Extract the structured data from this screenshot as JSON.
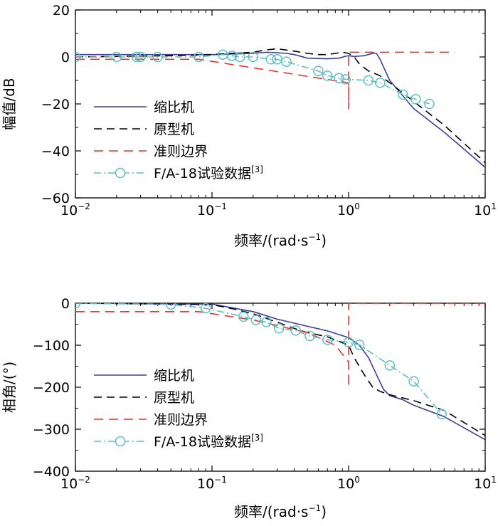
{
  "colors": {
    "scaled": "#3a3f9a",
    "prototype": "#000000",
    "criterion": "#e8332e",
    "flight": "#5bbfc4"
  },
  "chart_data": [
    {
      "type": "line",
      "title": "",
      "xlabel": "频率/(rad·s",
      "xlabel_sup": "−1",
      "xlabel_close": ")",
      "ylabel": "幅值/dB",
      "xscale": "log",
      "xlim": [
        0.01,
        10
      ],
      "ylim": [
        -60,
        20
      ],
      "xticks": [
        {
          "v": 0.01,
          "b": "10",
          "e": "−2"
        },
        {
          "v": 0.1,
          "b": "10",
          "e": "−1"
        },
        {
          "v": 1,
          "b": "10",
          "e": "0"
        },
        {
          "v": 10,
          "b": "10",
          "e": "1"
        }
      ],
      "yticks": [
        {
          "v": 20,
          "t": "20"
        },
        {
          "v": 0,
          "t": "0"
        },
        {
          "v": -20,
          "t": "−20"
        },
        {
          "v": -40,
          "t": "−40"
        },
        {
          "v": -60,
          "t": "−60"
        }
      ],
      "legend_position": "bottom-left",
      "series": [
        {
          "name": "缩比机",
          "style": "scaled",
          "x": [
            0.01,
            0.05,
            0.1,
            0.2,
            0.25,
            0.3,
            0.35,
            0.4,
            0.5,
            0.7,
            0.85,
            0.95,
            1.0,
            1.1,
            1.3,
            1.5,
            1.6,
            1.7,
            2.0,
            3.0,
            5.0,
            10.0
          ],
          "y": [
            1,
            1,
            1,
            1.5,
            2,
            1.8,
            1.5,
            1,
            -0.5,
            -0.8,
            -0.5,
            0.3,
            0.5,
            0.2,
            0.5,
            1.5,
            1.5,
            -1,
            -10,
            -22,
            -32,
            -47
          ]
        },
        {
          "name": "原型机",
          "style": "prototype",
          "x": [
            0.01,
            0.05,
            0.1,
            0.2,
            0.25,
            0.3,
            0.4,
            0.5,
            0.6,
            0.7,
            0.8,
            0.9,
            1.0,
            1.1,
            1.2,
            1.4,
            1.7,
            2.0,
            3.0,
            5.0,
            10.0
          ],
          "y": [
            0,
            0.5,
            1,
            2,
            3,
            3.5,
            2.5,
            1.5,
            1,
            1,
            1.5,
            2,
            1.5,
            0,
            -3,
            -6,
            -8,
            -11,
            -19,
            -29,
            -45
          ]
        },
        {
          "name": "准则边界",
          "style": "criterion",
          "x": [
            0.01,
            0.08,
            1.0,
            1.0,
            1.0,
            1.0,
            6.0
          ],
          "y": [
            -1,
            -1,
            -11,
            -22,
            -11,
            2,
            2
          ]
        },
        {
          "name": "F/A-18试验数据",
          "sup": "[3]",
          "style": "flight",
          "x": [
            0.01,
            0.02,
            0.028,
            0.03,
            0.04,
            0.08,
            0.12,
            0.14,
            0.16,
            0.2,
            0.27,
            0.3,
            0.35,
            0.6,
            0.7,
            0.85,
            0.95,
            1.4,
            1.7,
            2.5,
            3.1,
            3.9
          ],
          "y": [
            0,
            0,
            0,
            0,
            0,
            0,
            1,
            0.5,
            0,
            0,
            -1,
            -1,
            -2,
            -6,
            -8,
            -9,
            -9.5,
            -10,
            -11,
            -16,
            -18,
            -20
          ]
        }
      ]
    },
    {
      "type": "line",
      "title": "",
      "xlabel": "频率/(rad·s",
      "xlabel_sup": "−1",
      "xlabel_close": ")",
      "ylabel": "相角/(°)",
      "xscale": "log",
      "xlim": [
        0.01,
        10
      ],
      "ylim": [
        -400,
        0
      ],
      "xticks": [
        {
          "v": 0.01,
          "b": "10",
          "e": "−2"
        },
        {
          "v": 0.1,
          "b": "10",
          "e": "−1"
        },
        {
          "v": 1,
          "b": "10",
          "e": "0"
        },
        {
          "v": 10,
          "b": "10",
          "e": "1"
        }
      ],
      "yticks": [
        {
          "v": 0,
          "t": "0"
        },
        {
          "v": -100,
          "t": "−100"
        },
        {
          "v": -200,
          "t": "−200"
        },
        {
          "v": -300,
          "t": "−300"
        },
        {
          "v": -400,
          "t": "−400"
        }
      ],
      "legend_position": "bottom-left",
      "series": [
        {
          "name": "缩比机",
          "style": "scaled",
          "x": [
            0.01,
            0.1,
            0.2,
            0.3,
            0.5,
            0.7,
            1.0,
            1.2,
            1.4,
            1.6,
            1.8,
            2.0,
            2.5,
            3.0,
            5.0,
            10.0
          ],
          "y": [
            0,
            -2,
            -20,
            -38,
            -55,
            -66,
            -82,
            -100,
            -130,
            -170,
            -205,
            -220,
            -230,
            -243,
            -270,
            -325
          ]
        },
        {
          "name": "原型机",
          "style": "prototype",
          "x": [
            0.01,
            0.1,
            0.15,
            0.2,
            0.3,
            0.4,
            0.5,
            0.7,
            1.0,
            1.1,
            1.3,
            1.5,
            1.7,
            2.0,
            3.0,
            5.0,
            10.0
          ],
          "y": [
            0,
            -3,
            -15,
            -25,
            -45,
            -60,
            -70,
            -80,
            -100,
            -130,
            -170,
            -200,
            -210,
            -218,
            -232,
            -255,
            -315
          ]
        },
        {
          "name": "准则边界",
          "style": "criterion",
          "x": [
            0.01,
            0.08,
            0.2,
            0.5,
            0.8,
            1.0,
            1.0,
            1.0,
            1.0,
            1.0,
            10.0
          ],
          "y": [
            -20,
            -20,
            -40,
            -70,
            -100,
            -140,
            -200,
            -140,
            -70,
            0,
            0
          ]
        },
        {
          "name": "F/A-18试验数据",
          "sup": "[3]",
          "style": "flight",
          "x": [
            0.01,
            0.05,
            0.09,
            0.17,
            0.21,
            0.25,
            0.31,
            0.41,
            0.52,
            0.7,
            1.0,
            1.2,
            2.0,
            3.0,
            4.8
          ],
          "y": [
            0,
            -3,
            -12,
            -32,
            -40,
            -45,
            -60,
            -65,
            -78,
            -87,
            -93,
            -99,
            -148,
            -186,
            -264
          ]
        }
      ]
    }
  ]
}
